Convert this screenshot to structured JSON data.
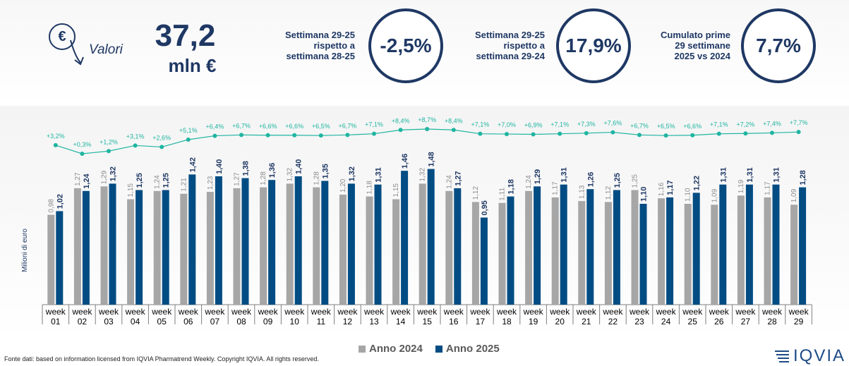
{
  "header": {
    "icon": "euro-down-arrow-icon",
    "label": "Valori",
    "value": "37,2",
    "unit": "mln €",
    "kpis": [
      {
        "label_lines": [
          "Settimana 29-25",
          "rispetto a",
          "settimana 28-25"
        ],
        "value": "-2,5%"
      },
      {
        "label_lines": [
          "Settimana 29-25",
          "rispetto a",
          "settimana 29-24"
        ],
        "value": "17,9%"
      },
      {
        "label_lines": [
          "Cumulato prime",
          "29 settimane",
          "2025 vs 2024"
        ],
        "value": "7,7%"
      }
    ]
  },
  "colors": {
    "anno_2024": "#a6a6a6",
    "anno_2025": "#004c83",
    "growth_line": "#1fb5a1",
    "accent": "#1f3864"
  },
  "chart_data": {
    "type": "bar",
    "ylabel": "Milioni di euro",
    "categories": [
      [
        "week",
        "01"
      ],
      [
        "week",
        "02"
      ],
      [
        "week",
        "03"
      ],
      [
        "week",
        "04"
      ],
      [
        "week",
        "05"
      ],
      [
        "week",
        "06"
      ],
      [
        "week",
        "07"
      ],
      [
        "week",
        "08"
      ],
      [
        "week",
        "09"
      ],
      [
        "week",
        "10"
      ],
      [
        "week",
        "11"
      ],
      [
        "week",
        "12"
      ],
      [
        "week",
        "13"
      ],
      [
        "week",
        "14"
      ],
      [
        "week",
        "15"
      ],
      [
        "week",
        "16"
      ],
      [
        "week",
        "17"
      ],
      [
        "week",
        "18"
      ],
      [
        "week",
        "19"
      ],
      [
        "week",
        "20"
      ],
      [
        "week",
        "21"
      ],
      [
        "week",
        "22"
      ],
      [
        "week",
        "23"
      ],
      [
        "week",
        "24"
      ],
      [
        "week",
        "25"
      ],
      [
        "week",
        "26"
      ],
      [
        "week",
        "27"
      ],
      [
        "week",
        "28"
      ],
      [
        "week",
        "29"
      ]
    ],
    "series": [
      {
        "name": "Anno 2024",
        "values": [
          0.98,
          1.27,
          1.29,
          1.15,
          1.24,
          1.21,
          1.23,
          1.27,
          1.28,
          1.32,
          1.28,
          1.2,
          1.18,
          1.15,
          1.32,
          1.24,
          1.12,
          1.11,
          1.24,
          1.17,
          1.13,
          1.12,
          1.25,
          1.16,
          1.1,
          1.09,
          1.19,
          1.17,
          1.09
        ],
        "labels": [
          "0,98",
          "1,27",
          "1,29",
          "1,15",
          "1,24",
          "1,21",
          "1,23",
          "1,27",
          "1,28",
          "1,32",
          "1,28",
          "1,20",
          "1,18",
          "1,15",
          "1,32",
          "1,24",
          "1,12",
          "1,11",
          "1,24",
          "1,17",
          "1,13",
          "1,12",
          "1,25",
          "1,16",
          "1,10",
          "1,09",
          "1,19",
          "1,17",
          "1,09"
        ]
      },
      {
        "name": "Anno 2025",
        "values": [
          1.02,
          1.24,
          1.32,
          1.25,
          1.25,
          1.42,
          1.4,
          1.38,
          1.36,
          1.4,
          1.35,
          1.32,
          1.31,
          1.46,
          1.48,
          1.27,
          0.95,
          1.18,
          1.29,
          1.31,
          1.26,
          1.25,
          1.1,
          1.17,
          1.22,
          1.31,
          1.31,
          1.31,
          1.28
        ],
        "labels": [
          "1,02",
          "1,24",
          "1,32",
          "1,25",
          "1,25",
          "1,42",
          "1,40",
          "1,38",
          "1,36",
          "1,40",
          "1,35",
          "1,32",
          "1,31",
          "1,46",
          "1,48",
          "1,27",
          "0,95",
          "1,18",
          "1,29",
          "1,31",
          "1,26",
          "1,25",
          "1,10",
          "1,17",
          "1,22",
          "1,31",
          "1,31",
          "1,31",
          "1,28"
        ]
      }
    ],
    "cumulative_growth": {
      "values": [
        3.2,
        0.3,
        1.2,
        3.1,
        2.6,
        5.1,
        6.4,
        6.7,
        6.6,
        6.6,
        6.5,
        6.7,
        7.1,
        8.4,
        8.7,
        8.4,
        7.1,
        7.0,
        6.9,
        7.1,
        7.3,
        7.6,
        6.7,
        6.5,
        6.6,
        7.1,
        7.2,
        7.4,
        7.7
      ],
      "labels": [
        "+3,2%",
        "+0,3%",
        "+1,2%",
        "+3,1%",
        "+2,6%",
        "+5,1%",
        "+6,4%",
        "+6,7%",
        "+6,6%",
        "+6,6%",
        "+6,5%",
        "+6,7%",
        "+7,1%",
        "+8,4%",
        "+8,7%",
        "+8,4%",
        "+7,1%",
        "+7,0%",
        "+6,9%",
        "+7,1%",
        "+7,3%",
        "+7,6%",
        "+6,7%",
        "+6,5%",
        "+6,6%",
        "+7,1%",
        "+7,2%",
        "+7,4%",
        "+7,7%"
      ]
    },
    "legend_position": "bottom",
    "grid": false
  },
  "footer": {
    "source": "Fonte dati: based on information licensed from IQVIA Pharmatrend Weekly. Copyright IQVIA. All rights reserved.",
    "logo_text": "IQVIA"
  }
}
